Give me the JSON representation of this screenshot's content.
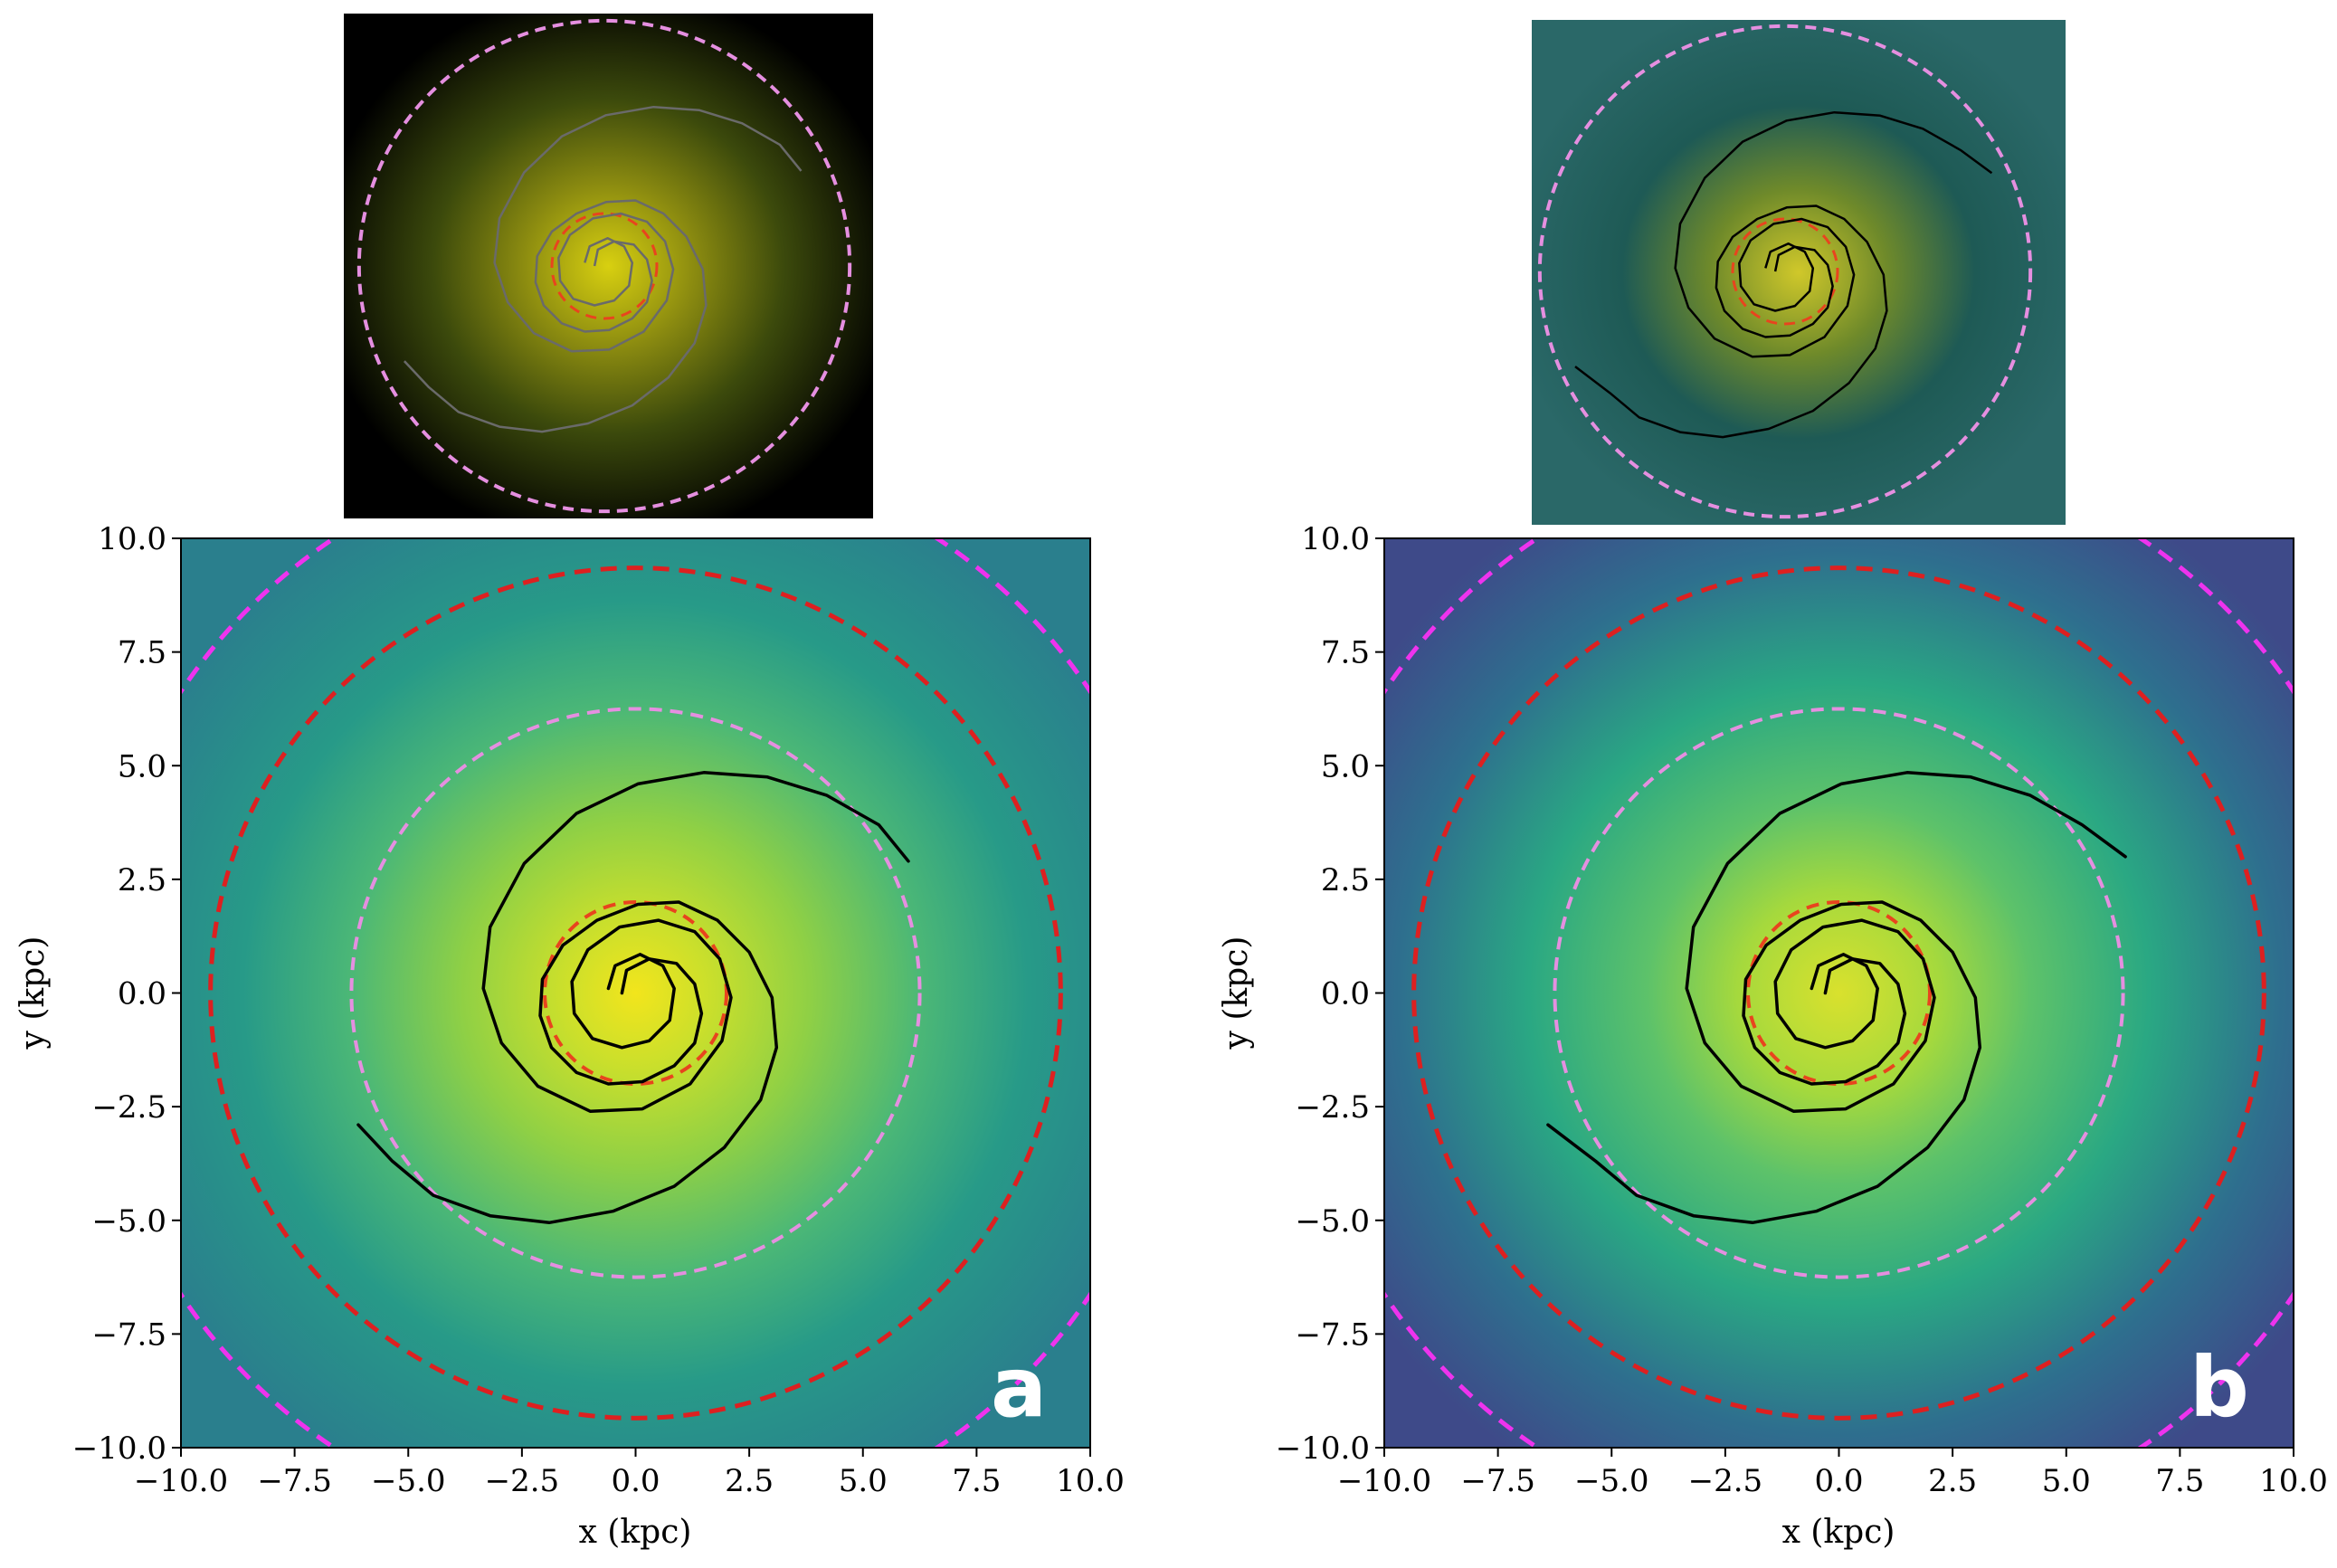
{
  "chart_data": [
    {
      "type": "heatmap",
      "panel": "a",
      "xlabel": "x (kpc)",
      "ylabel": "y (kpc)",
      "xlim": [
        -10,
        10
      ],
      "ylim": [
        -10,
        10
      ],
      "xticks": [
        "−10.0",
        "−7.5",
        "−5.0",
        "−2.5",
        "0.0",
        "2.5",
        "5.0",
        "7.5",
        "10.0"
      ],
      "yticks": [
        "−10.0",
        "−7.5",
        "−5.0",
        "−2.5",
        "0.0",
        "2.5",
        "5.0",
        "7.5",
        "10.0"
      ],
      "grid": false,
      "colormap": "viridis",
      "colors": {
        "inner_ring": "#e8441e",
        "middle_ring": "#e58fe0",
        "outer_ring": "#dd2020",
        "edge_ring": "#ee33ee",
        "spiral": "#000000"
      },
      "circles_kpc": [
        {
          "role": "inner",
          "radius": 2.0,
          "style": "dashed"
        },
        {
          "role": "middle",
          "radius": 6.25,
          "style": "dashed"
        },
        {
          "role": "outer",
          "radius": 9.35,
          "style": "dashed"
        },
        {
          "role": "edge",
          "radius": 12.0,
          "style": "dashed"
        }
      ],
      "spiral_arms": [
        {
          "name": "",
          "points": [
            [
              -0.6,
              0.1
            ],
            [
              -0.45,
              0.6
            ],
            [
              0.1,
              0.85
            ],
            [
              0.6,
              0.6
            ],
            [
              0.85,
              0.1
            ],
            [
              0.75,
              -0.6
            ],
            [
              0.3,
              -1.05
            ],
            [
              -0.3,
              -1.2
            ],
            [
              -0.95,
              -1.0
            ],
            [
              -1.35,
              -0.45
            ],
            [
              -1.4,
              0.25
            ],
            [
              -1.05,
              0.95
            ],
            [
              -0.35,
              1.45
            ],
            [
              0.5,
              1.6
            ],
            [
              1.3,
              1.35
            ],
            [
              1.85,
              0.75
            ],
            [
              2.1,
              -0.1
            ],
            [
              1.9,
              -1.05
            ],
            [
              1.2,
              -2.0
            ],
            [
              0.15,
              -2.55
            ],
            [
              -1.0,
              -2.6
            ],
            [
              -2.15,
              -2.05
            ],
            [
              -2.95,
              -1.1
            ],
            [
              -3.35,
              0.1
            ],
            [
              -3.2,
              1.45
            ],
            [
              -2.45,
              2.85
            ],
            [
              -1.3,
              3.95
            ],
            [
              0.05,
              4.6
            ],
            [
              1.5,
              4.85
            ],
            [
              2.9,
              4.75
            ],
            [
              4.2,
              4.35
            ],
            [
              5.35,
              3.7
            ],
            [
              6.0,
              2.9
            ]
          ]
        },
        {
          "name": "",
          "points": [
            [
              -0.3,
              0.0
            ],
            [
              -0.2,
              0.5
            ],
            [
              0.3,
              0.75
            ],
            [
              0.9,
              0.65
            ],
            [
              1.3,
              0.2
            ],
            [
              1.45,
              -0.45
            ],
            [
              1.3,
              -1.1
            ],
            [
              0.85,
              -1.6
            ],
            [
              0.15,
              -1.95
            ],
            [
              -0.6,
              -2.0
            ],
            [
              -1.3,
              -1.75
            ],
            [
              -1.85,
              -1.2
            ],
            [
              -2.1,
              -0.5
            ],
            [
              -2.05,
              0.3
            ],
            [
              -1.6,
              1.05
            ],
            [
              -0.85,
              1.6
            ],
            [
              0.05,
              1.95
            ],
            [
              0.95,
              2.0
            ],
            [
              1.8,
              1.6
            ],
            [
              2.5,
              0.9
            ],
            [
              3.0,
              -0.1
            ],
            [
              3.1,
              -1.2
            ],
            [
              2.75,
              -2.35
            ],
            [
              1.95,
              -3.4
            ],
            [
              0.85,
              -4.25
            ],
            [
              -0.5,
              -4.8
            ],
            [
              -1.9,
              -5.05
            ],
            [
              -3.2,
              -4.9
            ],
            [
              -4.45,
              -4.45
            ],
            [
              -5.35,
              -3.7
            ],
            [
              -6.1,
              -2.9
            ]
          ]
        }
      ]
    },
    {
      "type": "heatmap",
      "panel": "b",
      "xlabel": "x (kpc)",
      "ylabel": "y (kpc)",
      "xlim": [
        -10,
        10
      ],
      "ylim": [
        -10,
        10
      ],
      "xticks": [
        "−10.0",
        "−7.5",
        "−5.0",
        "−2.5",
        "0.0",
        "2.5",
        "5.0",
        "7.5",
        "10.0"
      ],
      "yticks": [
        "−10.0",
        "−7.5",
        "−5.0",
        "−2.5",
        "0.0",
        "2.5",
        "5.0",
        "7.5",
        "10.0"
      ],
      "grid": false,
      "colormap": "viridis",
      "colors": {
        "inner_ring": "#e8441e",
        "middle_ring": "#e58fe0",
        "outer_ring": "#dd2020",
        "edge_ring": "#ee33ee",
        "spiral": "#000000"
      },
      "circles_kpc": [
        {
          "role": "inner",
          "radius": 2.0,
          "style": "dashed"
        },
        {
          "role": "middle",
          "radius": 6.25,
          "style": "dashed"
        },
        {
          "role": "outer",
          "radius": 9.35,
          "style": "dashed"
        },
        {
          "role": "edge",
          "radius": 12.0,
          "style": "dashed"
        }
      ],
      "spiral_arms": [
        {
          "name": "",
          "points": [
            [
              -0.6,
              0.1
            ],
            [
              -0.45,
              0.6
            ],
            [
              0.1,
              0.85
            ],
            [
              0.6,
              0.6
            ],
            [
              0.85,
              0.1
            ],
            [
              0.75,
              -0.6
            ],
            [
              0.3,
              -1.05
            ],
            [
              -0.3,
              -1.2
            ],
            [
              -0.95,
              -1.0
            ],
            [
              -1.35,
              -0.45
            ],
            [
              -1.4,
              0.25
            ],
            [
              -1.05,
              0.95
            ],
            [
              -0.35,
              1.45
            ],
            [
              0.5,
              1.6
            ],
            [
              1.3,
              1.35
            ],
            [
              1.85,
              0.75
            ],
            [
              2.1,
              -0.1
            ],
            [
              1.9,
              -1.05
            ],
            [
              1.2,
              -2.0
            ],
            [
              0.15,
              -2.55
            ],
            [
              -1.0,
              -2.6
            ],
            [
              -2.15,
              -2.05
            ],
            [
              -2.95,
              -1.1
            ],
            [
              -3.35,
              0.1
            ],
            [
              -3.2,
              1.45
            ],
            [
              -2.45,
              2.85
            ],
            [
              -1.3,
              3.95
            ],
            [
              0.05,
              4.6
            ],
            [
              1.5,
              4.85
            ],
            [
              2.9,
              4.75
            ],
            [
              4.2,
              4.35
            ],
            [
              5.35,
              3.7
            ],
            [
              6.3,
              3.0
            ]
          ]
        },
        {
          "name": "",
          "points": [
            [
              -0.3,
              0.0
            ],
            [
              -0.2,
              0.5
            ],
            [
              0.3,
              0.75
            ],
            [
              0.9,
              0.65
            ],
            [
              1.3,
              0.2
            ],
            [
              1.45,
              -0.45
            ],
            [
              1.3,
              -1.1
            ],
            [
              0.85,
              -1.6
            ],
            [
              0.15,
              -1.95
            ],
            [
              -0.6,
              -2.0
            ],
            [
              -1.3,
              -1.75
            ],
            [
              -1.85,
              -1.2
            ],
            [
              -2.1,
              -0.5
            ],
            [
              -2.05,
              0.3
            ],
            [
              -1.6,
              1.05
            ],
            [
              -0.85,
              1.6
            ],
            [
              0.05,
              1.95
            ],
            [
              0.95,
              2.0
            ],
            [
              1.8,
              1.6
            ],
            [
              2.5,
              0.9
            ],
            [
              3.0,
              -0.1
            ],
            [
              3.1,
              -1.2
            ],
            [
              2.75,
              -2.35
            ],
            [
              1.95,
              -3.4
            ],
            [
              0.85,
              -4.25
            ],
            [
              -0.5,
              -4.8
            ],
            [
              -1.9,
              -5.05
            ],
            [
              -3.2,
              -4.9
            ],
            [
              -4.45,
              -4.45
            ],
            [
              -5.35,
              -3.7
            ],
            [
              -6.4,
              -2.9
            ]
          ]
        }
      ]
    }
  ],
  "insets": [
    {
      "panel": "a",
      "image": "observed-galaxy-face-on",
      "background": "#000000",
      "glow": "#c8c800"
    },
    {
      "panel": "b",
      "image": "residual-map",
      "background": "#1f5a5a",
      "glow": "#c8c020"
    }
  ]
}
